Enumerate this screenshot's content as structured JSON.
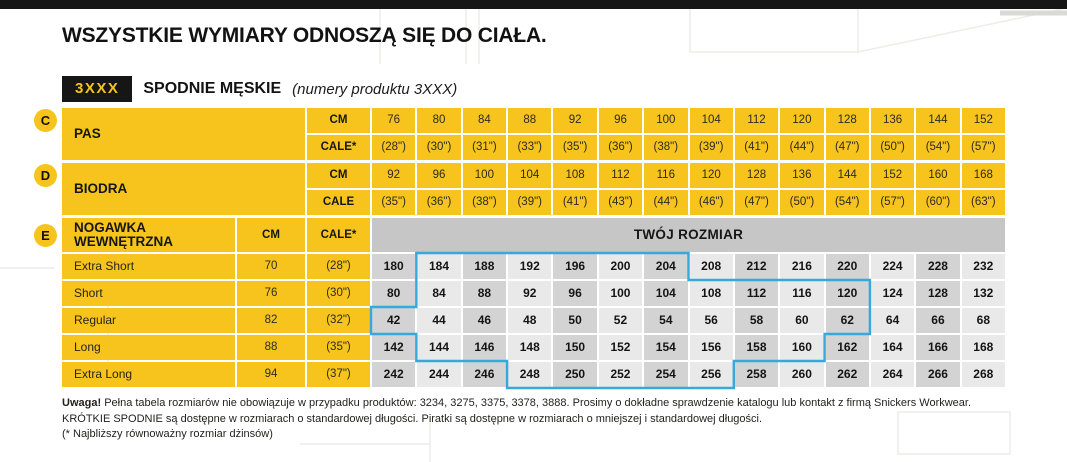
{
  "header": {
    "title": "WSZYSTKIE WYMIARY ODNOSZĄ SIĘ DO CIAŁA.",
    "badge": "3XXX",
    "product_name": "SPODNIE MĘSKIE",
    "product_note": "(numery produktu 3XXX)"
  },
  "colors": {
    "yellow": "#f6c41d",
    "black_bar": "#161616",
    "gray_band": "#c6c6c6",
    "cell_light": "#e9e9e9",
    "cell_dark": "#d3d3d3",
    "outline_blue": "#35a9dc"
  },
  "measure_sections": [
    {
      "letter": "C",
      "label": "PAS",
      "rows": [
        {
          "unit": "CM",
          "values": [
            "76",
            "80",
            "84",
            "88",
            "92",
            "96",
            "100",
            "104",
            "112",
            "120",
            "128",
            "136",
            "144",
            "152"
          ]
        },
        {
          "unit": "CALE*",
          "values": [
            "(28\")",
            "(30\")",
            "(31\")",
            "(33\")",
            "(35\")",
            "(36\")",
            "(38\")",
            "(39\")",
            "(41\")",
            "(44\")",
            "(47\")",
            "(50\")",
            "(54\")",
            "(57\")"
          ]
        }
      ]
    },
    {
      "letter": "D",
      "label": "BIODRA",
      "rows": [
        {
          "unit": "CM",
          "values": [
            "92",
            "96",
            "100",
            "104",
            "108",
            "112",
            "116",
            "120",
            "128",
            "136",
            "144",
            "152",
            "160",
            "168"
          ]
        },
        {
          "unit": "CALE",
          "values": [
            "(35\")",
            "(36\")",
            "(38\")",
            "(39\")",
            "(41\")",
            "(43\")",
            "(44\")",
            "(46\")",
            "(47\")",
            "(50\")",
            "(54\")",
            "(57\")",
            "(60\")",
            "(63\")"
          ]
        }
      ]
    }
  ],
  "leg_section": {
    "letter": "E",
    "label": "NOGAWKA WEWNĘTRZNA",
    "cm_header": "CM",
    "cale_header": "CALE*",
    "size_header": "TWÓJ ROZMIAR",
    "rows": [
      {
        "label": "Extra Short",
        "cm": "70",
        "cale": "(28\")",
        "sizes": [
          "180",
          "184",
          "188",
          "192",
          "196",
          "200",
          "204",
          "208",
          "212",
          "216",
          "220",
          "224",
          "228",
          "232"
        ],
        "outline": [
          1,
          6
        ]
      },
      {
        "label": "Short",
        "cm": "76",
        "cale": "(30\")",
        "sizes": [
          "80",
          "84",
          "88",
          "92",
          "96",
          "100",
          "104",
          "108",
          "112",
          "116",
          "120",
          "124",
          "128",
          "132"
        ],
        "outline": [
          1,
          10
        ]
      },
      {
        "label": "Regular",
        "cm": "82",
        "cale": "(32\")",
        "sizes": [
          "42",
          "44",
          "46",
          "48",
          "50",
          "52",
          "54",
          "56",
          "58",
          "60",
          "62",
          "64",
          "66",
          "68"
        ],
        "outline": [
          0,
          10
        ]
      },
      {
        "label": "Long",
        "cm": "88",
        "cale": "(35\")",
        "sizes": [
          "142",
          "144",
          "146",
          "148",
          "150",
          "152",
          "154",
          "156",
          "158",
          "160",
          "162",
          "164",
          "166",
          "168"
        ],
        "outline": [
          1,
          9
        ]
      },
      {
        "label": "Extra Long",
        "cm": "94",
        "cale": "(37\")",
        "sizes": [
          "242",
          "244",
          "246",
          "248",
          "250",
          "252",
          "254",
          "256",
          "258",
          "260",
          "262",
          "264",
          "266",
          "268"
        ],
        "outline": [
          3,
          7
        ]
      }
    ]
  },
  "footer": {
    "bold_prefix": "Uwaga!",
    "line1": "Pełna tabela rozmiarów nie obowiązuje w przypadku produktów: 3234, 3275, 3375, 3378, 3888. Prosimy o dokładne sprawdzenie katalogu lub kontakt z firmą Snickers Workwear. KRÓTKIE SPODNIE są dostępne w rozmiarach o standardowej długości. Piratki są dostępne w rozmiarach o mniejszej i standardowej długości.",
    "line2": "(* Najbliższy równoważny rozmiar dżinsów)"
  }
}
